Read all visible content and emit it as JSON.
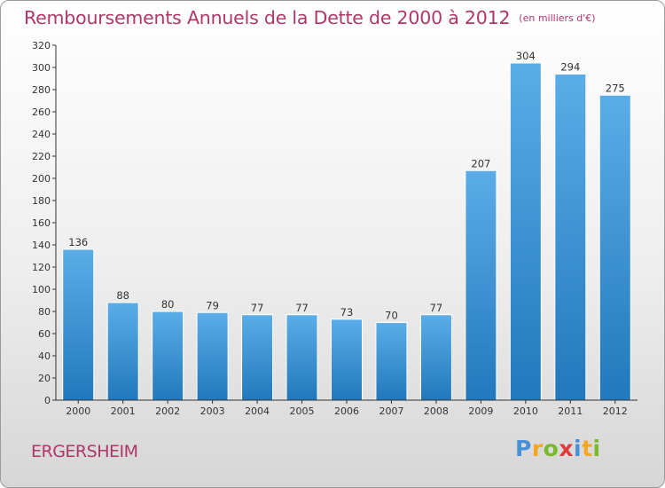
{
  "header": {
    "title": "Remboursements Annuels de la Dette de 2000 à 2012",
    "subtitle": "(en milliers d'€)"
  },
  "footer": {
    "commune": "ERGERSHEIM",
    "logo": "Proxiti"
  },
  "colors": {
    "title": "#b0366a",
    "bar_top": "#5aade8",
    "bar_bottom": "#2278bb"
  },
  "chart_data": {
    "type": "bar",
    "title": "Remboursements Annuels de la Dette de 2000 à 2012",
    "subtitle": "(en milliers d'€)",
    "xlabel": "",
    "ylabel": "",
    "categories": [
      "2000",
      "2001",
      "2002",
      "2003",
      "2004",
      "2005",
      "2006",
      "2007",
      "2008",
      "2009",
      "2010",
      "2011",
      "2012"
    ],
    "values": [
      136,
      88,
      80,
      79,
      77,
      77,
      73,
      70,
      77,
      207,
      304,
      294,
      275
    ],
    "ylim": [
      0,
      320
    ],
    "yticks": [
      0,
      20,
      40,
      60,
      80,
      100,
      120,
      140,
      160,
      180,
      200,
      220,
      240,
      260,
      280,
      300,
      320
    ],
    "grid": false,
    "data_labels": true
  }
}
